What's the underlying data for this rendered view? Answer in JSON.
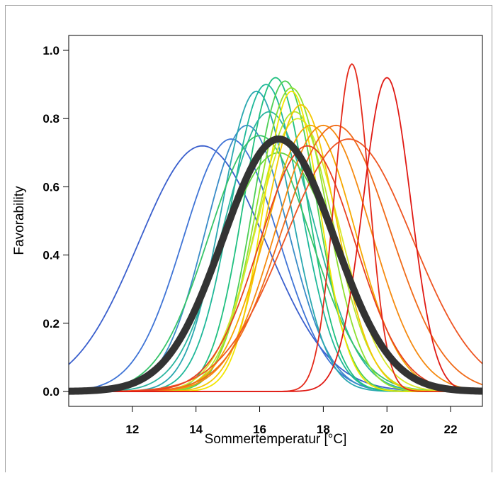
{
  "chart_data": {
    "type": "line",
    "xlabel": "Sommertemperatur [°C]",
    "ylabel": "Favorability",
    "xlim": [
      10,
      23
    ],
    "ylim": [
      0,
      1.0
    ],
    "x_ticks": [
      "12",
      "14",
      "16",
      "18",
      "20",
      "22"
    ],
    "y_ticks": [
      "0.0",
      "0.2",
      "0.4",
      "0.6",
      "0.8",
      "1.0"
    ],
    "grid": false,
    "legend": "none",
    "series": [
      {
        "color": "#3a5fcd",
        "peak_x": 14.2,
        "peak_y": 0.72,
        "width": 2.0
      },
      {
        "color": "#3f74d6",
        "peak_x": 15.1,
        "peak_y": 0.74,
        "width": 1.5
      },
      {
        "color": "#3a8cc8",
        "peak_x": 15.6,
        "peak_y": 0.78,
        "width": 1.3
      },
      {
        "color": "#2aa8b0",
        "peak_x": 15.9,
        "peak_y": 0.88,
        "width": 1.1
      },
      {
        "color": "#1fb89a",
        "peak_x": 16.2,
        "peak_y": 0.9,
        "width": 1.1
      },
      {
        "color": "#20c080",
        "peak_x": 16.5,
        "peak_y": 0.92,
        "width": 1.0
      },
      {
        "color": "#2bb5a0",
        "peak_x": 16.3,
        "peak_y": 0.82,
        "width": 1.4
      },
      {
        "color": "#36c46a",
        "peak_x": 16.0,
        "peak_y": 0.75,
        "width": 1.6
      },
      {
        "color": "#4ccf55",
        "peak_x": 16.8,
        "peak_y": 0.91,
        "width": 1.0
      },
      {
        "color": "#66d640",
        "peak_x": 16.6,
        "peak_y": 0.7,
        "width": 1.8
      },
      {
        "color": "#8ee030",
        "peak_x": 17.0,
        "peak_y": 0.89,
        "width": 1.1
      },
      {
        "color": "#b5e62c",
        "peak_x": 17.1,
        "peak_y": 0.82,
        "width": 1.2
      },
      {
        "color": "#d8e82a",
        "peak_x": 17.2,
        "peak_y": 0.8,
        "width": 1.3
      },
      {
        "color": "#f2e600",
        "peak_x": 17.0,
        "peak_y": 0.88,
        "width": 0.9
      },
      {
        "color": "#f5c800",
        "peak_x": 17.3,
        "peak_y": 0.84,
        "width": 1.1
      },
      {
        "color": "#f6a800",
        "peak_x": 17.6,
        "peak_y": 0.78,
        "width": 1.4
      },
      {
        "color": "#f58a10",
        "peak_x": 18.0,
        "peak_y": 0.78,
        "width": 1.5
      },
      {
        "color": "#f06a18",
        "peak_x": 18.4,
        "peak_y": 0.78,
        "width": 1.7
      },
      {
        "color": "#ee5522",
        "peak_x": 18.8,
        "peak_y": 0.74,
        "width": 2.0
      },
      {
        "color": "#e84020",
        "peak_x": 17.5,
        "peak_y": 0.72,
        "width": 1.5
      },
      {
        "color": "#e42a1a",
        "peak_x": 18.9,
        "peak_y": 0.96,
        "width": 0.55
      },
      {
        "color": "#e01a14",
        "peak_x": 20.0,
        "peak_y": 0.92,
        "width": 0.75
      }
    ],
    "mean_curve": {
      "color": "#333333",
      "peak_x": 16.6,
      "peak_y": 0.74,
      "width": 1.75
    }
  }
}
